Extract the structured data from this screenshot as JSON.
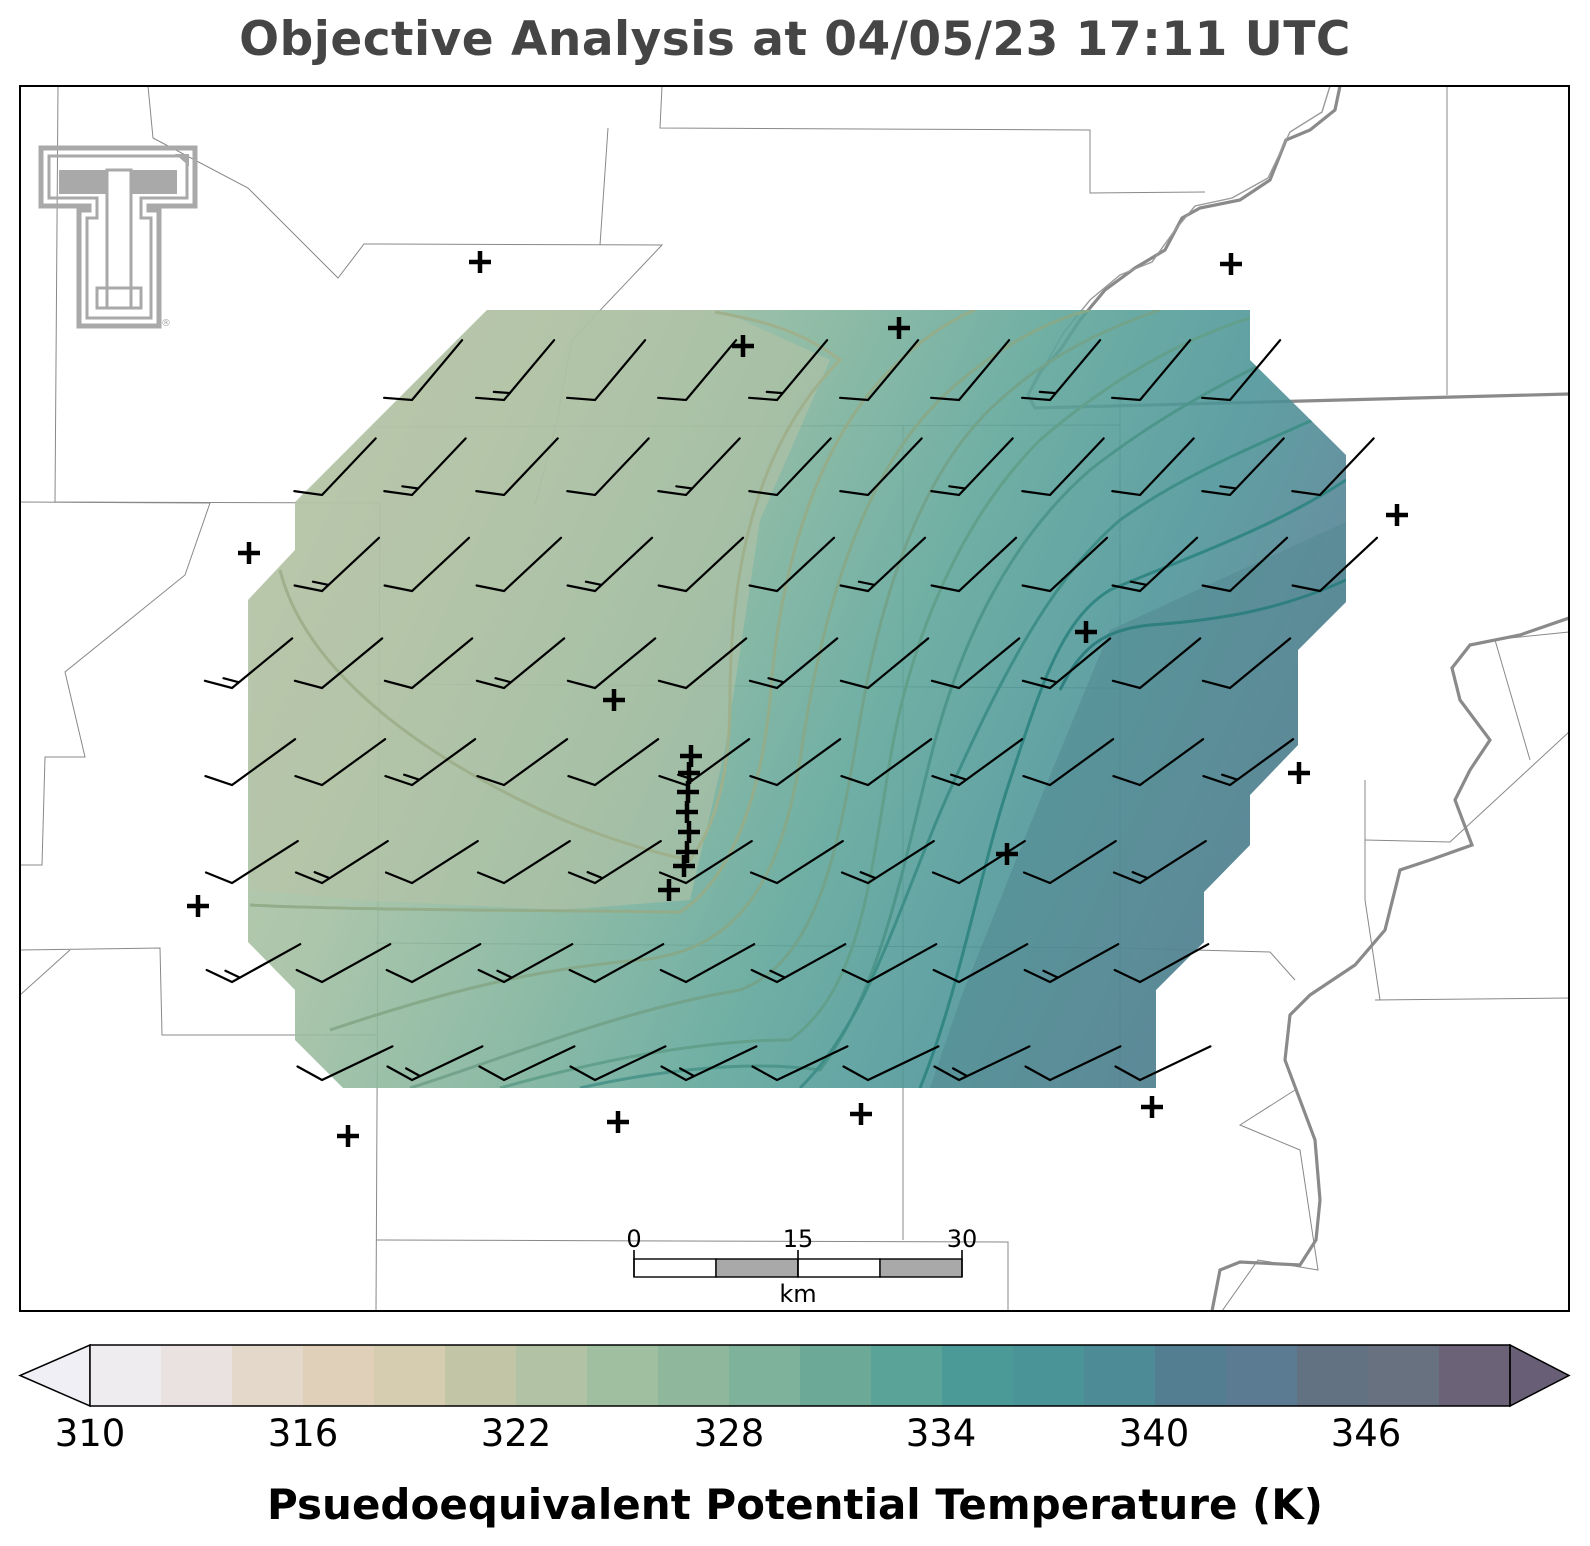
{
  "title": "Objective Analysis at 04/05/23 17:11 UTC",
  "logo": {
    "name": "texas-tech-double-t-logo",
    "color": "#a9a9a9"
  },
  "scale_bar": {
    "labels": [
      "0",
      "15",
      "30"
    ],
    "unit": "km"
  },
  "colorbar": {
    "label": "Psuedoequivalent Potential Temperature (K)",
    "ticks": [
      "310",
      "316",
      "322",
      "328",
      "334",
      "340",
      "346"
    ],
    "min": 310,
    "max": 350,
    "step": 2,
    "extend": "both",
    "colors": [
      "#f0eff5",
      "#eeecee",
      "#e9e2e0",
      "#e4d8cb",
      "#e1d0b9",
      "#d6cdb0",
      "#c2c6a7",
      "#b2c3a5",
      "#a0bea0",
      "#8fb79b",
      "#7fb29a",
      "#6da997",
      "#5aa398",
      "#4c9a97",
      "#4a9397",
      "#4d8c96",
      "#537d91",
      "#5a7b92",
      "#627283",
      "#687180",
      "#6b6278",
      "#685f77"
    ]
  },
  "map_style": {
    "fill_opacity": 0.88,
    "contour_color": "#3a7a5a",
    "background": "#ffffff"
  },
  "chart_data": {
    "type": "heatmap",
    "field": "Psuedoequivalent Potential Temperature (K)",
    "contour_interval_K": 2,
    "value_range_K": [
      322,
      342
    ],
    "gradient": "increasing from west (~322 K) to southeast (~342 K)",
    "wind_barbs": "southwesterly, mostly 10-20 kt",
    "station_markers": "plus signs"
  }
}
